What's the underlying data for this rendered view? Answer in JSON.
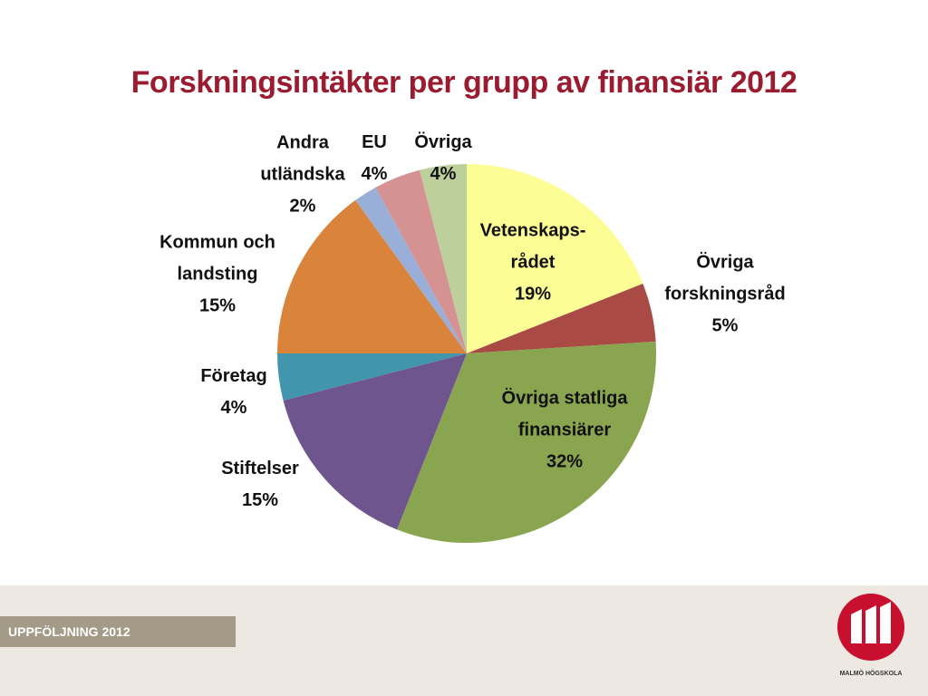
{
  "chart_data": {
    "type": "pie",
    "title": "Forskningsintäkter per grupp av finansiär 2012",
    "categories": [
      "Vetenskaps-\nrådet",
      "Övriga\nforskningsråd",
      "Övriga statliga\nfinansiärer",
      "Stiftelser",
      "Företag",
      "Kommun och\nlandsting",
      "Andra\nutländska",
      "EU",
      "Övriga"
    ],
    "values": [
      19,
      5,
      32,
      15,
      4,
      15,
      2,
      4,
      4
    ],
    "value_labels": [
      "19%",
      "5%",
      "32%",
      "15%",
      "4%",
      "15%",
      "2%",
      "4%",
      "4%"
    ],
    "colors": [
      "#fdfd96",
      "#a94a45",
      "#8aa550",
      "#6e558e",
      "#4196ad",
      "#d9833b",
      "#9aafd8",
      "#d49293",
      "#bdd09b"
    ]
  },
  "footer": {
    "label": "UPPFÖLJNING 2012",
    "logo_text": "MALMÖ HÖGSKOLA"
  }
}
